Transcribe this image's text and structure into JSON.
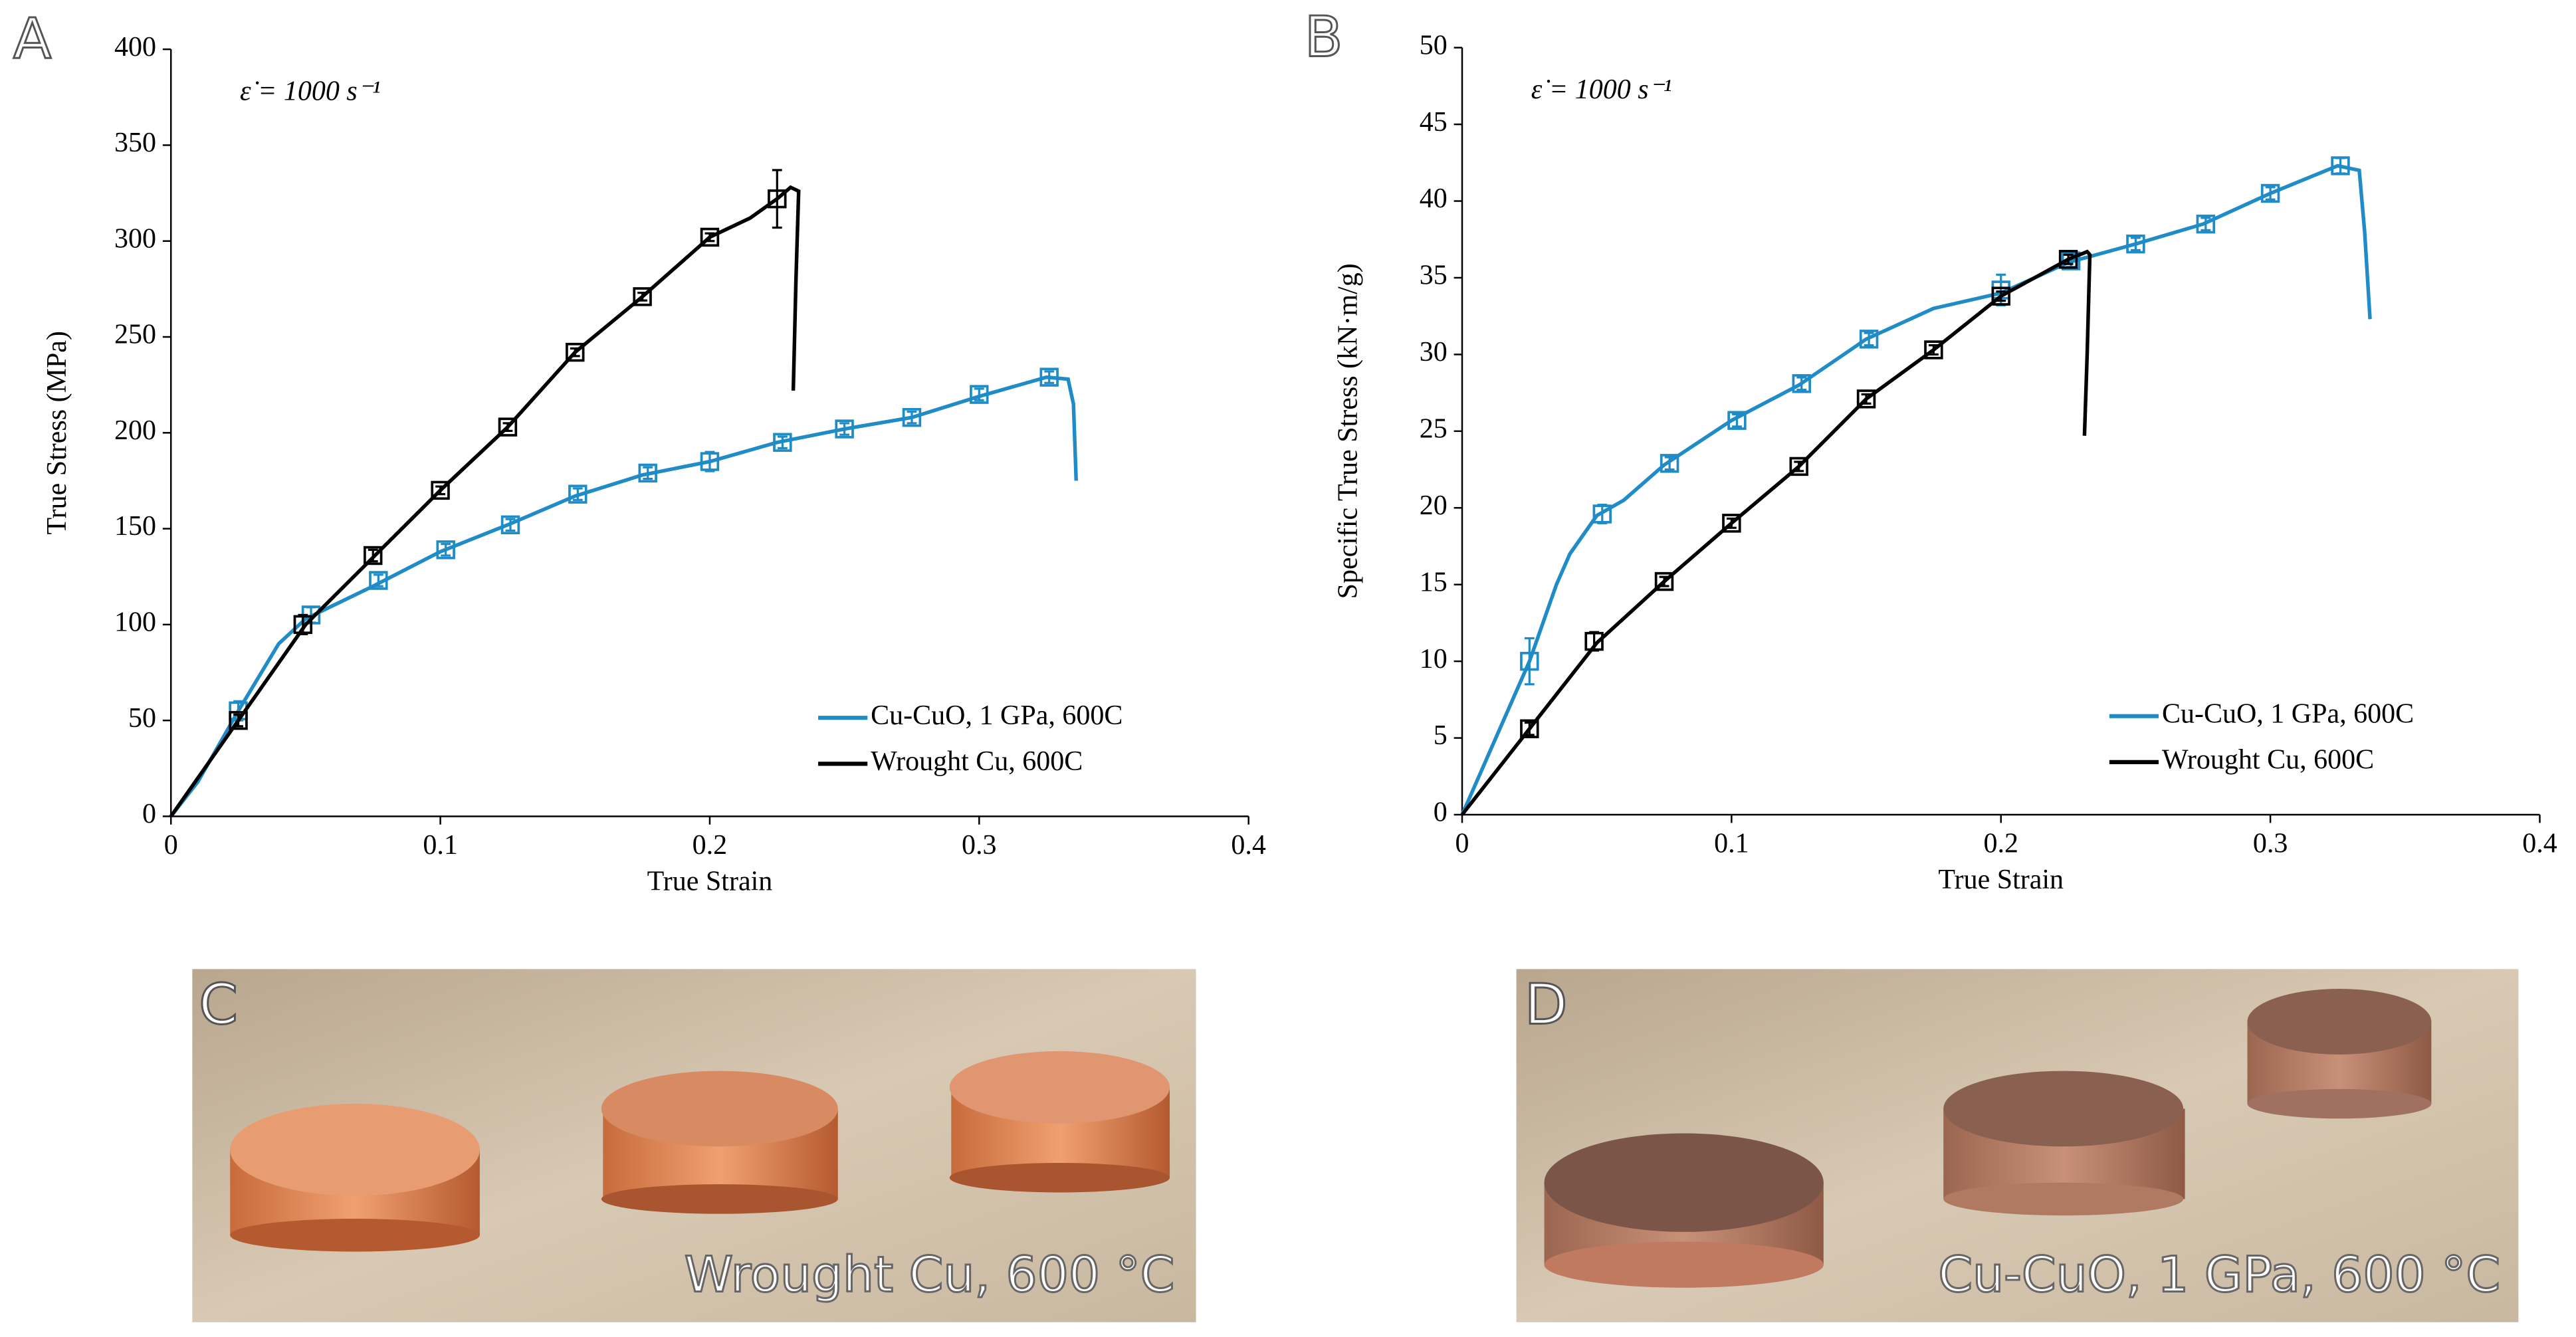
{
  "chart_data": [
    {
      "type": "line",
      "panel": "A",
      "annotation": "ε̇ = 1000 s⁻¹",
      "xlabel": "True Strain",
      "ylabel": "True Stress (MPa)",
      "xlim": [
        0,
        0.4
      ],
      "xticks": [
        0,
        0.1,
        0.2,
        0.3,
        0.4
      ],
      "ylim": [
        0,
        400
      ],
      "yticks": [
        0,
        50,
        100,
        150,
        200,
        250,
        300,
        350,
        400
      ],
      "grid": false,
      "legend": "bottom-right",
      "series": [
        {
          "name": "Cu-CuO, 1 GPa, 600C",
          "color": "#1f8bc7",
          "x": [
            0,
            0.01,
            0.025,
            0.04,
            0.05,
            0.075,
            0.1,
            0.125,
            0.15,
            0.175,
            0.2,
            0.225,
            0.25,
            0.275,
            0.3,
            0.325,
            0.333,
            0.335,
            0.336
          ],
          "values": [
            0,
            18,
            55,
            90,
            103,
            120,
            138,
            152,
            167,
            178,
            185,
            195,
            202,
            208,
            219,
            229,
            228,
            215,
            175
          ],
          "markers": {
            "x": [
              0.025,
              0.052,
              0.077,
              0.102,
              0.126,
              0.151,
              0.177,
              0.2,
              0.227,
              0.25,
              0.275,
              0.3,
              0.326
            ],
            "values": [
              55,
              105,
              123,
              139,
              152,
              168,
              179,
              185,
              195,
              202,
              208,
              220,
              229
            ],
            "errors": [
              5,
              4,
              3,
              3,
              3,
              3,
              3,
              5,
              3,
              3,
              3,
              3,
              3
            ]
          }
        },
        {
          "name": "Wrought Cu, 600C",
          "color": "#000000",
          "x": [
            0,
            0.025,
            0.05,
            0.075,
            0.1,
            0.125,
            0.15,
            0.175,
            0.2,
            0.215,
            0.225,
            0.23,
            0.233,
            0.232,
            0.231
          ],
          "values": [
            0,
            50,
            100,
            135,
            170,
            203,
            242,
            271,
            302,
            312,
            322,
            328,
            326,
            280,
            222
          ],
          "markers": {
            "x": [
              0.025,
              0.049,
              0.075,
              0.1,
              0.125,
              0.15,
              0.175,
              0.2,
              0.225
            ],
            "values": [
              50,
              100,
              136,
              170,
              203,
              242,
              271,
              302,
              322
            ],
            "errors": [
              3,
              5,
              3,
              2,
              2,
              2,
              2,
              2,
              15
            ]
          }
        }
      ]
    },
    {
      "type": "line",
      "panel": "B",
      "annotation": "ε̇ = 1000 s⁻¹",
      "xlabel": "True Strain",
      "ylabel": "Specific True Stress (kN·m/g)",
      "xlim": [
        0,
        0.4
      ],
      "xticks": [
        0,
        0.1,
        0.2,
        0.3,
        0.4
      ],
      "ylim": [
        0,
        50
      ],
      "yticks": [
        0,
        5,
        10,
        15,
        20,
        25,
        30,
        35,
        40,
        45,
        50
      ],
      "grid": false,
      "legend": "bottom-right",
      "series": [
        {
          "name": "Cu-CuO, 1 GPa, 600C",
          "color": "#1f8bc7",
          "x": [
            0,
            0.01,
            0.025,
            0.035,
            0.04,
            0.05,
            0.06,
            0.075,
            0.1,
            0.125,
            0.15,
            0.175,
            0.2,
            0.225,
            0.25,
            0.275,
            0.3,
            0.325,
            0.333,
            0.335,
            0.337
          ],
          "values": [
            0,
            4,
            10,
            15,
            17,
            19.5,
            20.5,
            22.8,
            25.7,
            28,
            31,
            33,
            34,
            36,
            37.2,
            38.5,
            40.5,
            42.3,
            42,
            38,
            32.3
          ],
          "markers": {
            "x": [
              0.025,
              0.052,
              0.077,
              0.102,
              0.126,
              0.151,
              0.2,
              0.226,
              0.25,
              0.276,
              0.3,
              0.326
            ],
            "values": [
              10,
              19.6,
              22.9,
              25.7,
              28.1,
              31,
              34.2,
              36.1,
              37.2,
              38.5,
              40.5,
              42.3
            ],
            "errors": [
              1.5,
              0.6,
              0.4,
              0.4,
              0.4,
              0.4,
              1,
              0.4,
              0.4,
              0.4,
              0.4,
              0.5
            ]
          }
        },
        {
          "name": "Wrought Cu, 600C",
          "color": "#000000",
          "x": [
            0,
            0.025,
            0.05,
            0.075,
            0.1,
            0.125,
            0.15,
            0.175,
            0.2,
            0.225,
            0.232,
            0.233,
            0.232,
            0.231
          ],
          "values": [
            0,
            5.6,
            11.2,
            15.2,
            19,
            22.7,
            27.1,
            30.3,
            33.8,
            36.2,
            36.7,
            36.5,
            30,
            24.7
          ],
          "markers": {
            "x": [
              0.025,
              0.049,
              0.075,
              0.1,
              0.125,
              0.15,
              0.175,
              0.2,
              0.225
            ],
            "values": [
              5.6,
              11.3,
              15.2,
              19,
              22.7,
              27.1,
              30.3,
              33.8,
              36.2
            ],
            "errors": [
              0.4,
              0.6,
              0.3,
              0.3,
              0.3,
              0.3,
              0.3,
              0.3,
              0.3
            ]
          }
        }
      ]
    }
  ],
  "photos": [
    {
      "letter": "C",
      "caption": "Wrought Cu, 600 °C"
    },
    {
      "letter": "D",
      "caption": "Cu-CuO, 1 GPa, 600 °C"
    }
  ]
}
